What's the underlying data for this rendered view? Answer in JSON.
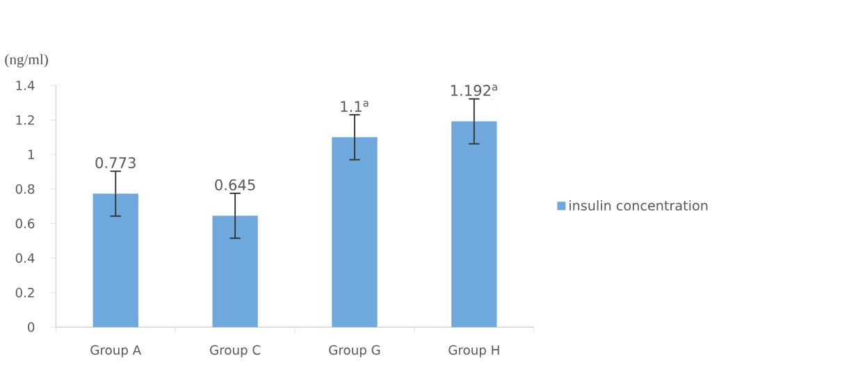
{
  "chart_data": {
    "type": "bar",
    "ylabel": "(ng/ml)",
    "categories": [
      "Group A",
      "Group C",
      "Group G",
      "Group H"
    ],
    "series": [
      {
        "name": "insulin concentration",
        "color": "#6fa8dc",
        "values": [
          0.773,
          0.645,
          1.1,
          1.192
        ],
        "errors": [
          0.13,
          0.13,
          0.13,
          0.13
        ],
        "value_labels": [
          "0.773",
          "0.645",
          "1.1$^{a}$",
          "1.192$^{a}$"
        ]
      }
    ],
    "ylim": [
      0,
      1.4
    ],
    "yticks": [
      0,
      0.2,
      0.4,
      0.6,
      0.8,
      1,
      1.2,
      1.4
    ],
    "legend": "right"
  }
}
